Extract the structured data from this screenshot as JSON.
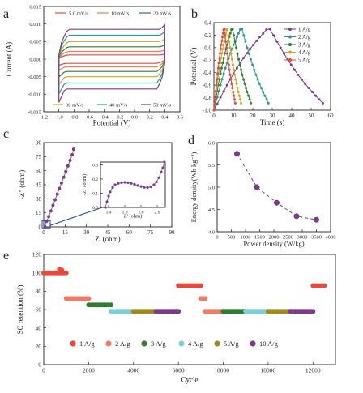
{
  "chart_data": [
    {
      "panel": "a",
      "type": "line",
      "xlabel": "Potential (V)",
      "ylabel": "Current (A)",
      "xlim": [
        -1.2,
        0.6
      ],
      "ylim": [
        -0.015,
        0.015
      ],
      "xticks": [
        "-1.2",
        "-1.0",
        "-0.8",
        "-0.6",
        "-0.4",
        "-0.2",
        "0.0",
        "0.2",
        "0.4",
        "0.6"
      ],
      "yticks": [
        "-0.015",
        "-0.010",
        "-0.005",
        "0.000",
        "0.005",
        "0.010",
        "0.015"
      ],
      "x_range": [
        -1.0,
        0.4
      ],
      "series": [
        {
          "name": "5.0 mV/s",
          "color": "#e8493a",
          "plateau": 0.0012
        },
        {
          "name": "10 mV/s",
          "color": "#f07a62",
          "plateau": 0.0022
        },
        {
          "name": "20 mV/s",
          "color": "#2e7d32",
          "plateau": 0.0035
        },
        {
          "name": "30 mV/s",
          "color": "#c8a828",
          "plateau": 0.005
        },
        {
          "name": "40 mV/s",
          "color": "#2a9a8c",
          "plateau": 0.0068
        },
        {
          "name": "50 mV/s",
          "color": "#7e3b8a",
          "plateau": 0.0085
        }
      ],
      "legend_top": [
        "5.0 mV/s",
        "10 mV/s",
        "20 mV/s"
      ],
      "legend_bottom": [
        "30 mV/s",
        "40 mV/s",
        "50 mV/s"
      ]
    },
    {
      "panel": "b",
      "type": "line",
      "xlabel": "Time (s)",
      "ylabel": "Potential (V)",
      "xlim": [
        0,
        60
      ],
      "ylim": [
        -1.0,
        0.4
      ],
      "xticks": [
        "0",
        "10",
        "20",
        "30",
        "40",
        "50",
        "60"
      ],
      "yticks": [
        "-1.0",
        "-0.8",
        "-0.6",
        "-0.4",
        "-0.2",
        "0.0",
        "0.2",
        "0.4"
      ],
      "series": [
        {
          "name": "1 A/g",
          "color": "#7e3b8a",
          "t_peak": 27,
          "t_end": 56
        },
        {
          "name": "2 A/g",
          "color": "#2a9a8c",
          "t_peak": 13.5,
          "t_end": 28
        },
        {
          "name": "3 A/g",
          "color": "#2e7d32",
          "t_peak": 9,
          "t_end": 19
        },
        {
          "name": "4 A/g",
          "color": "#c8a828",
          "t_peak": 6.5,
          "t_end": 14
        },
        {
          "name": "5 A/g",
          "color": "#e8493a",
          "t_peak": 5,
          "t_end": 11
        }
      ]
    },
    {
      "panel": "c",
      "type": "scatter",
      "xlabel": "Z' (ohm)",
      "ylabel": "-Z\" (ohm)",
      "xlim": [
        0,
        90
      ],
      "ylim": [
        0,
        90
      ],
      "xticks": [
        "0",
        "15",
        "30",
        "45",
        "60",
        "75",
        "90"
      ],
      "yticks": [
        "0",
        "15",
        "30",
        "45",
        "60",
        "75",
        "90"
      ],
      "x": [
        0.8,
        2,
        3.5,
        5,
        6.5,
        8,
        9.5,
        11,
        12.5,
        14,
        15.5,
        17,
        18.5,
        20,
        21
      ],
      "y": [
        0.3,
        6,
        11,
        17,
        23,
        29,
        35,
        41,
        47,
        53,
        59,
        65,
        71,
        77,
        83
      ],
      "inset": {
        "xlabel": "Z' (ohm)",
        "ylabel": "-Z\" (ohm)",
        "xlim": [
          1.3,
          2.1
        ],
        "ylim": [
          0.0,
          0.32
        ],
        "xticks": [
          "1.4",
          "1.6",
          "1.8",
          "2.0"
        ],
        "yticks": [
          "0.0",
          "0.1",
          "0.2",
          "0.3"
        ],
        "x": [
          1.36,
          1.38,
          1.4,
          1.42,
          1.45,
          1.48,
          1.52,
          1.56,
          1.6,
          1.64,
          1.68,
          1.72,
          1.76,
          1.8,
          1.84,
          1.88,
          1.92,
          1.96,
          1.99,
          2.02,
          2.05,
          2.07,
          2.09
        ],
        "y": [
          0.0,
          0.04,
          0.08,
          0.11,
          0.14,
          0.16,
          0.17,
          0.175,
          0.177,
          0.175,
          0.17,
          0.163,
          0.155,
          0.148,
          0.142,
          0.14,
          0.145,
          0.16,
          0.18,
          0.21,
          0.25,
          0.28,
          0.32
        ]
      }
    },
    {
      "panel": "d",
      "type": "scatter",
      "xlabel": "Power density (W/kg)",
      "ylabel": "Energy density(Wh kg⁻¹)",
      "xlim": [
        0,
        4000
      ],
      "ylim": [
        4.0,
        6.0
      ],
      "xticks": [
        "0",
        "500",
        "1000",
        "1500",
        "2000",
        "2500",
        "3000",
        "3500",
        "4000"
      ],
      "yticks": [
        "4.0",
        "4.5",
        "5.0",
        "5.5",
        "6.0"
      ],
      "x": [
        700,
        1400,
        2100,
        2800,
        3500
      ],
      "y": [
        5.75,
        5.0,
        4.65,
        4.35,
        4.27
      ]
    },
    {
      "panel": "e",
      "type": "scatter",
      "xlabel": "Cycle",
      "ylabel": "SC retention (%)",
      "xlim": [
        0,
        13000
      ],
      "ylim": [
        0,
        120
      ],
      "xticks": [
        "0",
        "2000",
        "4000",
        "6000",
        "8000",
        "10000",
        "12000"
      ],
      "yticks": [
        "0",
        "20",
        "40",
        "60",
        "80",
        "100",
        "120"
      ],
      "series": [
        {
          "name": "1 A/g",
          "color": "#e8493a",
          "segments": [
            [
              0,
              1000,
              100
            ],
            [
              6000,
              7000,
              86
            ],
            [
              12000,
              12500,
              86
            ]
          ]
        },
        {
          "name": "2 A/g",
          "color": "#f07a62",
          "segments": [
            [
              1000,
              2000,
              72
            ],
            [
              7000,
              7200,
              72
            ],
            [
              7200,
              8000,
              58
            ]
          ]
        },
        {
          "name": "3 A/g",
          "color": "#2e7d32",
          "segments": [
            [
              2000,
              3000,
              65
            ],
            [
              8000,
              9000,
              58
            ]
          ]
        },
        {
          "name": "4 A/g",
          "color": "#7ccfd8",
          "segments": [
            [
              3000,
              4000,
              58
            ],
            [
              9000,
              10000,
              58
            ]
          ]
        },
        {
          "name": "5 A/g",
          "color": "#a08a1e",
          "segments": [
            [
              4000,
              5000,
              58
            ],
            [
              10000,
              11000,
              58
            ]
          ]
        },
        {
          "name": "10 A/g",
          "color": "#7e3b8a",
          "segments": [
            [
              5000,
              6000,
              58
            ],
            [
              11000,
              12000,
              58
            ]
          ]
        }
      ],
      "bump": {
        "x": [
          700,
          800
        ],
        "y": [
          104,
          103
        ]
      }
    }
  ],
  "panel_labels": [
    "a",
    "b",
    "c",
    "d",
    "e"
  ]
}
